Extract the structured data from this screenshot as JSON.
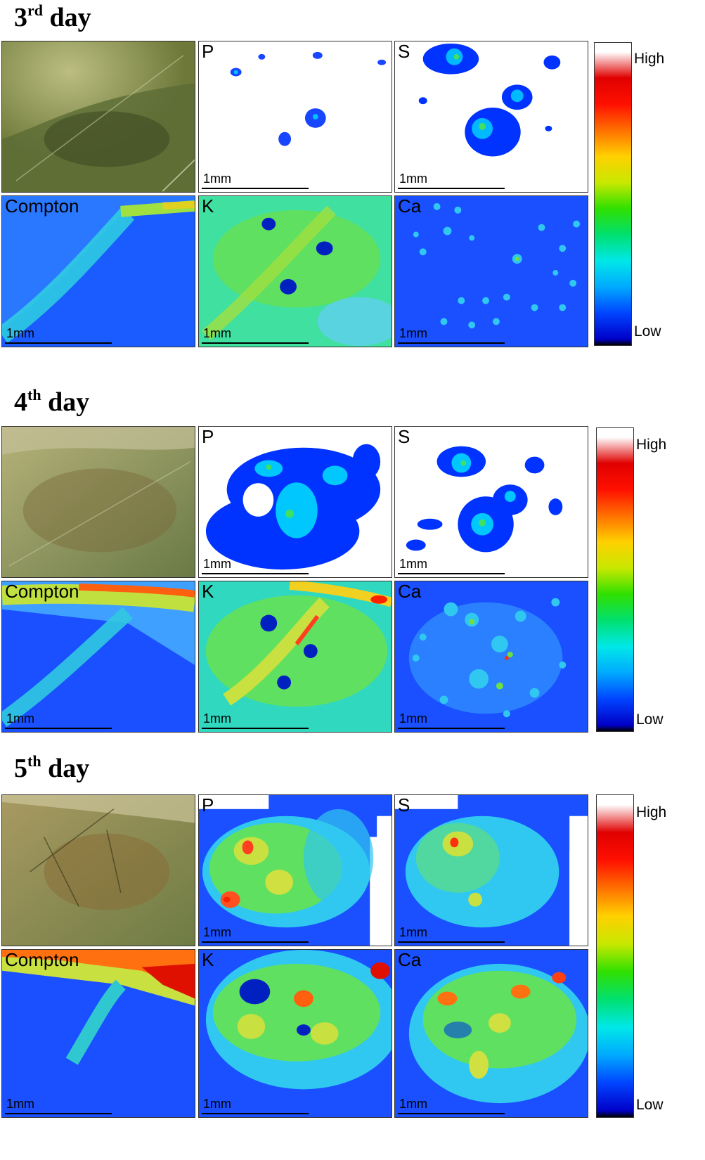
{
  "days": [
    {
      "num": "3",
      "suffix": "rd",
      "word": "day",
      "panels": {
        "photo": "",
        "p": "P",
        "s": "S",
        "compton": "Compton",
        "k": "K",
        "ca": "Ca"
      },
      "scale": "1mm",
      "colorbar": {
        "high": "High",
        "low": "Low"
      }
    },
    {
      "num": "4",
      "suffix": "th",
      "word": "day",
      "panels": {
        "photo": "",
        "p": "P",
        "s": "S",
        "compton": "Compton",
        "k": "K",
        "ca": "Ca"
      },
      "scale": "1mm",
      "colorbar": {
        "high": "High",
        "low": "Low"
      }
    },
    {
      "num": "5",
      "suffix": "th",
      "word": "day",
      "panels": {
        "photo": "",
        "p": "P",
        "s": "S",
        "compton": "Compton",
        "k": "K",
        "ca": "Ca"
      },
      "scale": "1mm",
      "colorbar": {
        "high": "High",
        "low": "Low"
      }
    }
  ],
  "colors": {
    "scale_stops": [
      "#000000",
      "#0000c8",
      "#0044ff",
      "#00aaff",
      "#00e8e8",
      "#00e070",
      "#30e000",
      "#c8e800",
      "#ffd000",
      "#ff7000",
      "#ff1000",
      "#e00000",
      "#ffffff"
    ]
  }
}
